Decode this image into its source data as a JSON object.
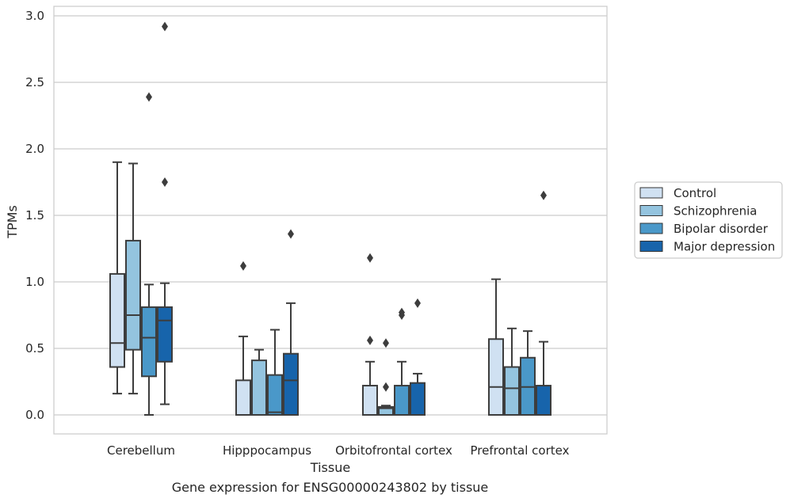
{
  "caption": "Gene expression for ENSG00000243802 by tissue",
  "chart_data": {
    "type": "boxplot",
    "xlabel": "Tissue",
    "ylabel": "TPMs",
    "ylim": [
      -0.14,
      3.07
    ],
    "yticks": [
      "0.0",
      "0.5",
      "1.0",
      "1.5",
      "2.0",
      "2.5",
      "3.0"
    ],
    "grid": "horizontal",
    "legend_position": "right",
    "categories": [
      "Cerebellum",
      "Hipppocampus",
      "Orbitofrontal cortex",
      "Prefrontal cortex"
    ],
    "series": [
      {
        "name": "Control",
        "color": "#d0e1f2",
        "boxes": [
          {
            "whislo": 0.16,
            "q1": 0.36,
            "med": 0.54,
            "q3": 1.06,
            "whishi": 1.9,
            "fliers": []
          },
          {
            "whislo": 0.0,
            "q1": 0.0,
            "med": 0.0,
            "q3": 0.26,
            "whishi": 0.59,
            "fliers": [
              1.12
            ]
          },
          {
            "whislo": 0.0,
            "q1": 0.0,
            "med": 0.0,
            "q3": 0.22,
            "whishi": 0.4,
            "fliers": [
              0.56,
              1.18
            ]
          },
          {
            "whislo": 0.0,
            "q1": 0.0,
            "med": 0.21,
            "q3": 0.57,
            "whishi": 1.02,
            "fliers": []
          }
        ]
      },
      {
        "name": "Schizophrenia",
        "color": "#94c4df",
        "boxes": [
          {
            "whislo": 0.16,
            "q1": 0.49,
            "med": 0.75,
            "q3": 1.31,
            "whishi": 1.89,
            "fliers": []
          },
          {
            "whislo": 0.0,
            "q1": 0.0,
            "med": 0.0,
            "q3": 0.41,
            "whishi": 0.49,
            "fliers": []
          },
          {
            "whislo": 0.0,
            "q1": 0.0,
            "med": 0.05,
            "q3": 0.06,
            "whishi": 0.07,
            "fliers": [
              0.21,
              0.54
            ]
          },
          {
            "whislo": 0.0,
            "q1": 0.0,
            "med": 0.2,
            "q3": 0.36,
            "whishi": 0.65,
            "fliers": []
          }
        ]
      },
      {
        "name": "Bipolar disorder",
        "color": "#4a98c9",
        "boxes": [
          {
            "whislo": 0.0,
            "q1": 0.29,
            "med": 0.58,
            "q3": 0.81,
            "whishi": 0.98,
            "fliers": [
              2.39
            ]
          },
          {
            "whislo": 0.0,
            "q1": 0.0,
            "med": 0.02,
            "q3": 0.3,
            "whishi": 0.64,
            "fliers": []
          },
          {
            "whislo": 0.0,
            "q1": 0.0,
            "med": 0.0,
            "q3": 0.22,
            "whishi": 0.4,
            "fliers": [
              0.75,
              0.77
            ]
          },
          {
            "whislo": 0.0,
            "q1": 0.0,
            "med": 0.21,
            "q3": 0.43,
            "whishi": 0.63,
            "fliers": []
          }
        ]
      },
      {
        "name": "Major depression",
        "color": "#1764ab",
        "boxes": [
          {
            "whislo": 0.08,
            "q1": 0.4,
            "med": 0.71,
            "q3": 0.81,
            "whishi": 0.99,
            "fliers": [
              1.75,
              2.92
            ]
          },
          {
            "whislo": 0.0,
            "q1": 0.0,
            "med": 0.26,
            "q3": 0.46,
            "whishi": 0.84,
            "fliers": [
              1.36
            ]
          },
          {
            "whislo": 0.0,
            "q1": 0.0,
            "med": 0.0,
            "q3": 0.24,
            "whishi": 0.31,
            "fliers": [
              0.84
            ]
          },
          {
            "whislo": 0.0,
            "q1": 0.0,
            "med": 0.0,
            "q3": 0.22,
            "whishi": 0.55,
            "fliers": [
              1.65
            ]
          }
        ]
      }
    ]
  }
}
